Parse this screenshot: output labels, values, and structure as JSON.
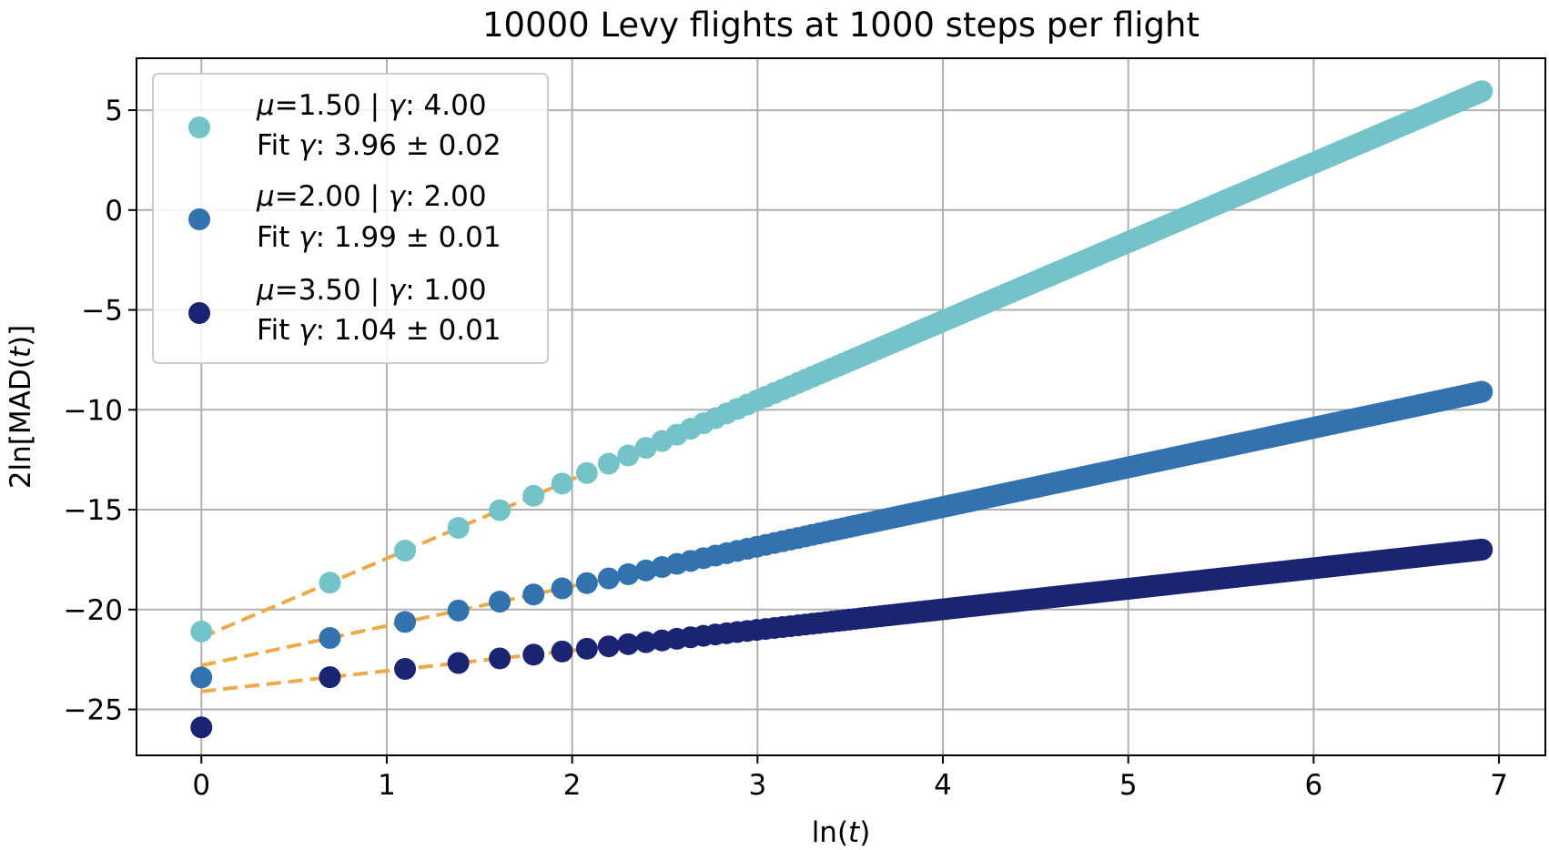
{
  "chart_data": {
    "type": "scatter",
    "title": "10000 Levy flights at 1000 steps per flight",
    "xlabel_parts": [
      "ln(",
      "t",
      ")"
    ],
    "ylabel_parts": [
      "2ln[MAD(",
      "t",
      ")]"
    ],
    "xlim": [
      -0.35,
      7.25
    ],
    "ylim": [
      -27.3,
      7.6
    ],
    "xticks": [
      0,
      1,
      2,
      3,
      4,
      5,
      6,
      7
    ],
    "xtick_labels": [
      "0",
      "1",
      "2",
      "3",
      "4",
      "5",
      "6",
      "7"
    ],
    "yticks": [
      5,
      0,
      -5,
      -10,
      -15,
      -20,
      -25
    ],
    "ytick_labels": [
      "5",
      "0",
      "−5",
      "−10",
      "−15",
      "−20",
      "−25"
    ],
    "grid": true,
    "legend_position": "top-left",
    "n_points": 1000,
    "fit_color": "#ecaa48",
    "series": [
      {
        "color": "#74c3c8",
        "legend_line1": [
          "μ",
          "=1.50 | ",
          "γ",
          ": 4.00"
        ],
        "legend_line2": [
          "Fit ",
          "γ",
          ": 3.96 ± 0.02"
        ],
        "mu": 1.5,
        "gamma": 4.0,
        "fit_gamma": 3.96,
        "fit_gamma_err": 0.02,
        "fit_intercept": -21.4,
        "first_point_y": -21.1,
        "y_at_x_max": 5.95
      },
      {
        "color": "#3272ae",
        "legend_line1": [
          "μ",
          "=2.00 | ",
          "γ",
          ": 2.00"
        ],
        "legend_line2": [
          "Fit ",
          "γ",
          ": 1.99 ± 0.01"
        ],
        "mu": 2.0,
        "gamma": 2.0,
        "fit_gamma": 1.99,
        "fit_gamma_err": 0.01,
        "fit_intercept": -22.8,
        "first_point_y": -23.4,
        "y_at_x_max": -9.1
      },
      {
        "color": "#1a2472",
        "legend_line1": [
          "μ",
          "=3.50 | ",
          "γ",
          ": 1.00"
        ],
        "legend_line2": [
          "Fit ",
          "γ",
          ": 1.04 ± 0.01"
        ],
        "mu": 3.5,
        "gamma": 1.0,
        "fit_gamma": 1.04,
        "fit_gamma_err": 0.01,
        "fit_intercept": -24.1,
        "first_point_y": -25.9,
        "y_at_x_max": -17.0
      }
    ]
  }
}
